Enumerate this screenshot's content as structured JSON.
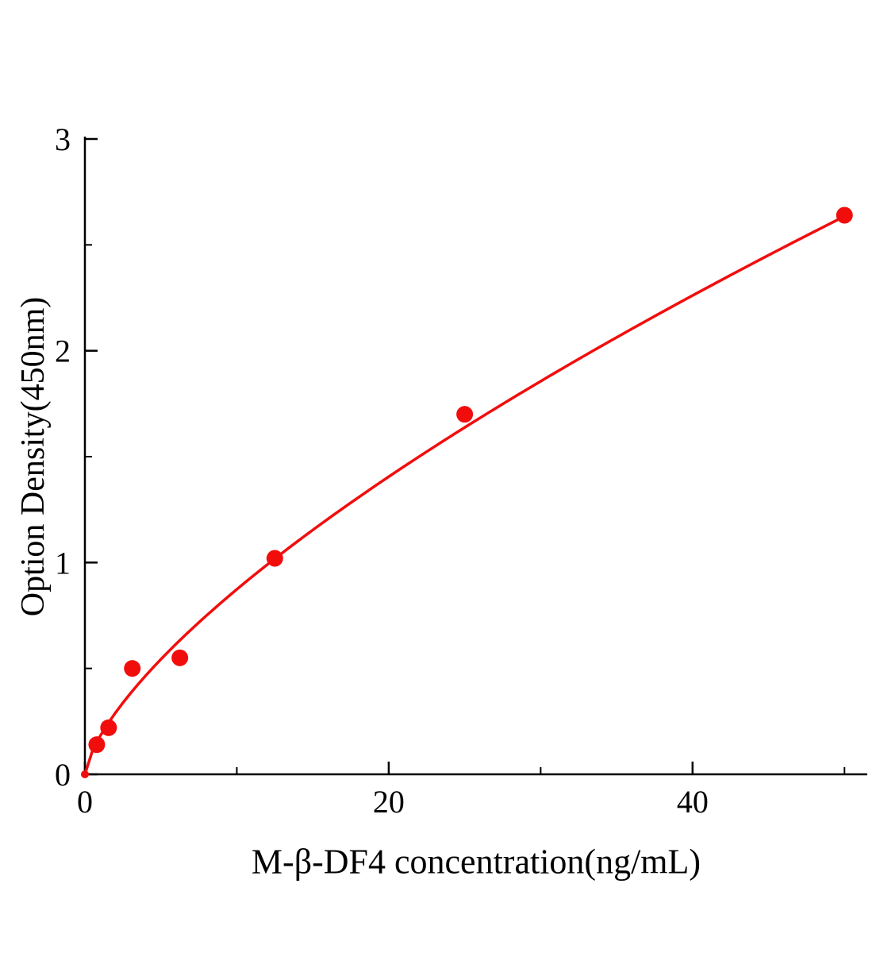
{
  "chart_data": {
    "type": "scatter",
    "title": "",
    "xlabel": "M-β-DF4 concentration(ng/mL)",
    "ylabel": "Option Density(450nm)",
    "x": [
      0,
      0.78,
      1.56,
      3.12,
      6.25,
      12.5,
      25,
      50
    ],
    "y": [
      0.0,
      0.14,
      0.22,
      0.5,
      0.55,
      1.02,
      1.7,
      2.64
    ],
    "xlim": [
      0,
      51.5
    ],
    "ylim": [
      0,
      3
    ],
    "x_major_ticks": [
      0,
      20,
      40
    ],
    "x_minor_ticks": [
      10,
      30,
      50
    ],
    "y_major_ticks": [
      0,
      1,
      2,
      3
    ],
    "y_minor_ticks": [
      0.5,
      1.5,
      2.5
    ],
    "fit": {
      "type": "power",
      "a": 0.18,
      "b": 0.686
    },
    "series_color": "#f20d0d",
    "axis_color": "#000000",
    "grid": false,
    "legend": null
  }
}
